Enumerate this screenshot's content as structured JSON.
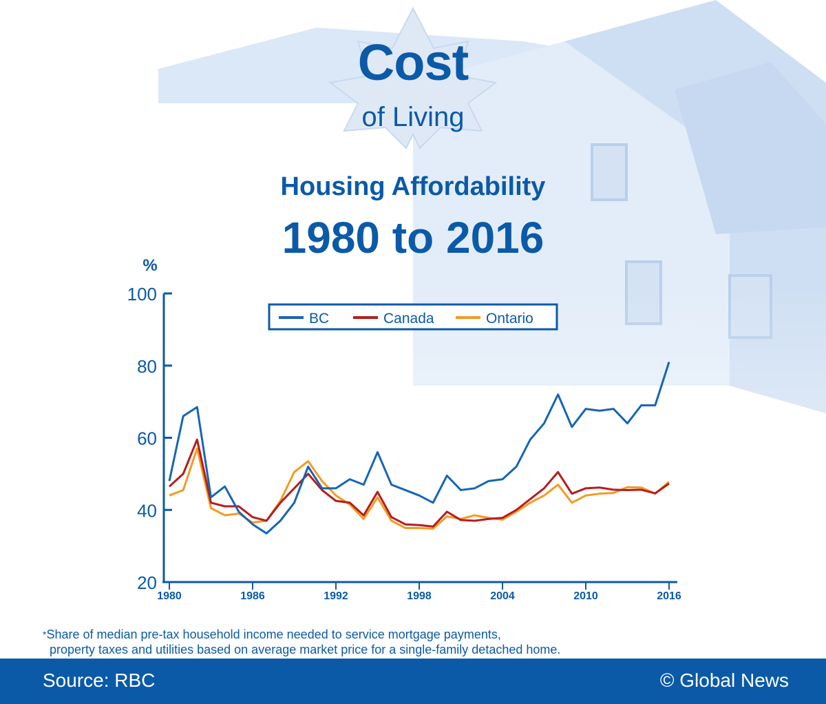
{
  "logo": {
    "line1": "Cost",
    "line2": "of Living"
  },
  "header": {
    "title": "Housing Affordability",
    "subtitle": "1980 to 2016"
  },
  "colors": {
    "BC": "#1565b5",
    "Canada": "#b71c1c",
    "Ontario": "#f39a22",
    "text": "#0b5aa8",
    "footer_bg": "#0b5aa8"
  },
  "chart_data": {
    "type": "line",
    "ylabel": "%",
    "ylim": [
      20,
      100
    ],
    "yticks": [
      20,
      40,
      60,
      80,
      100
    ],
    "xlim": [
      1980,
      2016
    ],
    "xticks": [
      1980,
      1986,
      1992,
      1998,
      2004,
      2010,
      2016
    ],
    "legend_position": "top-center",
    "grid": false,
    "x": [
      1980,
      1981,
      1982,
      1983,
      1984,
      1985,
      1986,
      1987,
      1988,
      1989,
      1990,
      1991,
      1992,
      1993,
      1994,
      1995,
      1996,
      1997,
      1998,
      1999,
      2000,
      2001,
      2002,
      2003,
      2004,
      2005,
      2006,
      2007,
      2008,
      2009,
      2010,
      2011,
      2012,
      2013,
      2014,
      2015,
      2016
    ],
    "series": [
      {
        "name": "BC",
        "values": [
          48,
          66,
          68.5,
          43.5,
          46.5,
          39.5,
          36,
          33.5,
          37,
          42,
          52,
          46,
          46,
          48.5,
          47,
          56,
          47,
          45.5,
          44,
          42,
          49.5,
          45.5,
          46,
          48,
          48.5,
          52,
          59.5,
          64,
          72,
          63,
          68,
          67.5,
          68,
          64,
          69,
          69,
          81
        ]
      },
      {
        "name": "Canada",
        "values": [
          46.5,
          50,
          59.5,
          42,
          41,
          41,
          38,
          37,
          42,
          46,
          50,
          45.5,
          42.5,
          42,
          38.5,
          45,
          38,
          36,
          35.8,
          35.4,
          39.5,
          37.2,
          37,
          37.5,
          37.8,
          40,
          43,
          46,
          50.5,
          44.5,
          46,
          46.2,
          45.6,
          45.5,
          45.6,
          44.6,
          47.3
        ]
      },
      {
        "name": "Ontario",
        "values": [
          44,
          45.5,
          57,
          40.5,
          38.5,
          39,
          36.5,
          37,
          42.5,
          50.5,
          53.5,
          48,
          44,
          41.5,
          37.5,
          43.5,
          37,
          35,
          35,
          34.8,
          38.2,
          37.5,
          38.5,
          37.8,
          37.3,
          39.5,
          42,
          44,
          47,
          42,
          44,
          44.5,
          44.7,
          46.3,
          46.2,
          44.5,
          47.8
        ]
      }
    ]
  },
  "footnote": {
    "star": "*",
    "line1": "Share of median pre-tax household income needed to service mortgage payments,",
    "line2": "property taxes and utilities based on average market price for a single-family detached home."
  },
  "footer": {
    "source": "Source: RBC",
    "copyright": "© Global News"
  }
}
